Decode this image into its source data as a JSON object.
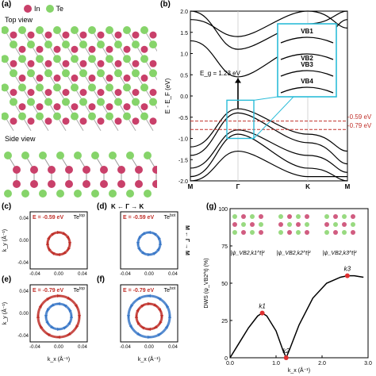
{
  "panels": {
    "a": {
      "label": "(a)",
      "top_view": "Top view",
      "side_view": "Side view",
      "legend": [
        {
          "name": "In",
          "color": "#c9406a"
        },
        {
          "name": "Te",
          "color": "#86d46a"
        }
      ]
    },
    "b": {
      "label": "(b)",
      "ylabel": "E - E_F (eV)",
      "gap_label": "E_g = 1.23 eV",
      "line1": "-0.59 eV",
      "line2": "-0.79 eV",
      "inset_labels": [
        "VB1",
        "VB2",
        "VB3",
        "VB4"
      ],
      "xticks": [
        "M",
        "Γ",
        "K",
        "M"
      ],
      "yticks": [
        "2.0",
        "1.5",
        "1.0",
        "0.5",
        "0.0",
        "-0.5",
        "-1.0",
        "-1.5",
        "-2.0"
      ]
    },
    "c": {
      "label": "(c)",
      "energy": "E = -0.59 eV",
      "tag": "Te",
      "sup": "top"
    },
    "d": {
      "label": "(d)",
      "energy": "E = -0.59 eV",
      "tag": "Te",
      "sup": "bot",
      "path": "K ← Γ → K",
      "side": "M ← Γ → M"
    },
    "e": {
      "label": "(e)",
      "energy": "E = -0.79 eV",
      "tag": "Te",
      "sup": "top"
    },
    "f": {
      "label": "(f)",
      "energy": "E = -0.79 eV",
      "tag": "Te",
      "sup": "bot"
    },
    "g": {
      "label": "(g)",
      "ylabel": "DWS (ψ_VB2^t) (%)",
      "xlabel": "k_x (Å⁻¹)",
      "wf": [
        "|ψ_VB2,k1^t|²",
        "|ψ_VB2,k2^t|²",
        "|ψ_VB2,k3^t|²"
      ],
      "points": [
        "k1",
        "k2",
        "k3"
      ],
      "xticks": [
        "0.0",
        "1.0",
        "2.0",
        "3.0"
      ],
      "yticks": [
        "0",
        "25",
        "50",
        "75",
        "100"
      ]
    },
    "cdef": {
      "ky": "k_y (Å⁻¹)",
      "kx": "k_x (Å⁻¹)",
      "ticks": [
        "-0.04",
        "0.00",
        "0.04"
      ]
    }
  },
  "colors": {
    "red": "#c0302a",
    "blue": "#3a78c8",
    "dash": "#c0302a",
    "cyan": "#2bbcd8"
  },
  "chart_data": {
    "type": "line",
    "xlabel": "k_x (Å⁻¹)",
    "ylabel": "DWS (%)",
    "xlim": [
      0,
      3
    ],
    "ylim": [
      0,
      100
    ],
    "x": [
      0.0,
      0.2,
      0.4,
      0.6,
      0.7,
      0.8,
      1.0,
      1.15,
      1.22,
      1.3,
      1.5,
      1.8,
      2.1,
      2.4,
      2.55,
      2.7,
      2.9
    ],
    "y": [
      0,
      10,
      20,
      28,
      30,
      28,
      18,
      5,
      0,
      6,
      22,
      40,
      50,
      54,
      55,
      55,
      54
    ],
    "points": [
      {
        "name": "k1",
        "x": 0.7,
        "y": 30
      },
      {
        "name": "k2",
        "x": 1.22,
        "y": 0
      },
      {
        "name": "k3",
        "x": 2.55,
        "y": 55
      }
    ]
  }
}
